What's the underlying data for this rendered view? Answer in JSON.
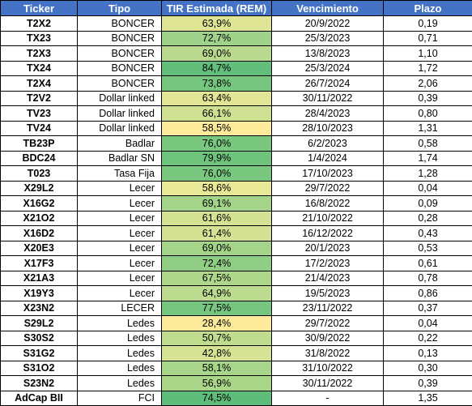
{
  "headers": [
    "Ticker",
    "Tipo",
    "TIR Estimada (REM)",
    "Vencimiento",
    "Plazo"
  ],
  "rows": [
    {
      "ticker": "T2X2",
      "tipo": "BONCER",
      "tir": "63,9%",
      "venc": "20/9/2022",
      "plazo": "0,19",
      "tir_color": "#dfe594"
    },
    {
      "ticker": "TX23",
      "tipo": "BONCER",
      "tir": "72,7%",
      "venc": "25/3/2023",
      "plazo": "0,71",
      "tir_color": "#9fd28a"
    },
    {
      "ticker": "T2X3",
      "tipo": "BONCER",
      "tir": "69,0%",
      "venc": "13/8/2023",
      "plazo": "1,10",
      "tir_color": "#b9da8e"
    },
    {
      "ticker": "TX24",
      "tipo": "BONCER",
      "tir": "84,7%",
      "venc": "25/3/2024",
      "plazo": "1,72",
      "tir_color": "#63be7b"
    },
    {
      "ticker": "T2X4",
      "tipo": "BONCER",
      "tir": "73,8%",
      "venc": "26/7/2024",
      "plazo": "2,06",
      "tir_color": "#77c67f"
    },
    {
      "ticker": "T2V2",
      "tipo": "Dollar linked",
      "tir": "63,4%",
      "venc": "30/11/2022",
      "plazo": "0,39",
      "tir_color": "#e2e595"
    },
    {
      "ticker": "TV23",
      "tipo": "Dollar linked",
      "tir": "66,1%",
      "venc": "28/4/2023",
      "plazo": "0,80",
      "tir_color": "#cfe092"
    },
    {
      "ticker": "TV24",
      "tipo": "Dollar linked",
      "tir": "58,5%",
      "venc": "28/10/2023",
      "plazo": "1,31",
      "tir_color": "#fdeb9b"
    },
    {
      "ticker": "TB23P",
      "tipo": "Badlar",
      "tir": "76,0%",
      "venc": "6/2/2023",
      "plazo": "0,58",
      "tir_color": "#7ac880"
    },
    {
      "ticker": "BDC24",
      "tipo": "Badlar SN",
      "tir": "79,9%",
      "venc": "1/4/2024",
      "plazo": "1,74",
      "tir_color": "#6ec37d"
    },
    {
      "ticker": "T023",
      "tipo": "Tasa Fija",
      "tir": "76,0%",
      "venc": "17/10/2023",
      "plazo": "1,28",
      "tir_color": "#7ac880"
    },
    {
      "ticker": "X29L2",
      "tipo": "Lecer",
      "tir": "58,6%",
      "venc": "29/7/2022",
      "plazo": "0,04",
      "tir_color": "#e8e897"
    },
    {
      "ticker": "X16G2",
      "tipo": "Lecer",
      "tir": "69,1%",
      "venc": "16/8/2022",
      "plazo": "0,09",
      "tir_color": "#a3d489"
    },
    {
      "ticker": "X21O2",
      "tipo": "Lecer",
      "tir": "61,6%",
      "venc": "21/10/2022",
      "plazo": "0,28",
      "tir_color": "#d3e293"
    },
    {
      "ticker": "X16D2",
      "tipo": "Lecer",
      "tir": "61,4%",
      "venc": "16/12/2022",
      "plazo": "0,43",
      "tir_color": "#d5e293"
    },
    {
      "ticker": "X20E3",
      "tipo": "Lecer",
      "tir": "69,0%",
      "venc": "20/1/2023",
      "plazo": "0,53",
      "tir_color": "#a4d489"
    },
    {
      "ticker": "X17F3",
      "tipo": "Lecer",
      "tir": "72,4%",
      "venc": "17/2/2023",
      "plazo": "0,61",
      "tir_color": "#90cd85"
    },
    {
      "ticker": "X21A3",
      "tipo": "Lecer",
      "tir": "67,5%",
      "venc": "21/4/2023",
      "plazo": "0,78",
      "tir_color": "#aed78b"
    },
    {
      "ticker": "X19Y3",
      "tipo": "Lecer",
      "tir": "64,9%",
      "venc": "19/5/2023",
      "plazo": "0,86",
      "tir_color": "#bedc8f"
    },
    {
      "ticker": "X23N2",
      "tipo": "LECER",
      "tir": "77,5%",
      "venc": "23/11/2022",
      "plazo": "0,37",
      "tir_color": "#77c67f"
    },
    {
      "ticker": "S29L2",
      "tipo": "Ledes",
      "tir": "28,4%",
      "venc": "29/7/2022",
      "plazo": "0,04",
      "tir_color": "#fdeb9b"
    },
    {
      "ticker": "S30S2",
      "tipo": "Ledes",
      "tir": "50,7%",
      "venc": "30/9/2022",
      "plazo": "0,22",
      "tir_color": "#c0dd8f"
    },
    {
      "ticker": "S31G2",
      "tipo": "Ledes",
      "tir": "42,8%",
      "venc": "31/8/2022",
      "plazo": "0,13",
      "tir_color": "#d7e394"
    },
    {
      "ticker": "S31O2",
      "tipo": "Ledes",
      "tir": "58,1%",
      "venc": "31/10/2022",
      "plazo": "0,30",
      "tir_color": "#a7d58a"
    },
    {
      "ticker": "S23N2",
      "tipo": "Ledes",
      "tir": "56,9%",
      "venc": "30/11/2022",
      "plazo": "0,39",
      "tir_color": "#aad68a"
    },
    {
      "ticker": "AdCap BII",
      "tipo": "FCI",
      "tir": "74,5%",
      "venc": "-",
      "plazo": "1,35",
      "tir_color": "#5fbd7b"
    }
  ]
}
